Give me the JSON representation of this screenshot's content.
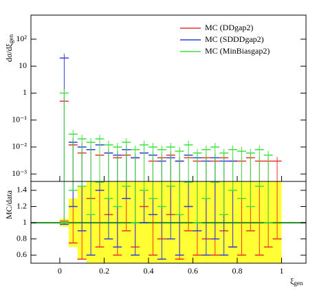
{
  "chart_data": {
    "type": "histogram-ratio",
    "ylabel": "dσ/dξ",
    "ylabel_sub": "gen",
    "xlabel": "ξ",
    "xlabel_sub": "gen",
    "log_y": true,
    "legend": "top-right",
    "bin_width": 0.04,
    "x": [
      0.02,
      0.06,
      0.1,
      0.14,
      0.18,
      0.22,
      0.26,
      0.3,
      0.34,
      0.38,
      0.42,
      0.46,
      0.5,
      0.54,
      0.58,
      0.62,
      0.66,
      0.7,
      0.74,
      0.78,
      0.82,
      0.86,
      0.9,
      0.94,
      0.98
    ],
    "xlim": [
      -0.13,
      1.11
    ],
    "xticks": [
      0,
      0.2,
      0.4,
      0.6,
      0.8,
      1
    ],
    "ylim": [
      0.00053,
      780
    ],
    "yticks": [
      {
        "value": 0.001,
        "label": "10⁻³"
      },
      {
        "value": 0.01,
        "label": "10⁻²"
      },
      {
        "value": 0.1,
        "label": "10⁻¹"
      },
      1,
      10,
      {
        "value": 100,
        "label": "10²"
      }
    ],
    "series": [
      {
        "name": "MC (DDgap2)",
        "color": "#e8322c",
        "values": [
          0.5,
          0.012,
          0.006,
          0.008,
          0.005,
          0.006,
          0.004,
          0.005,
          0.004,
          0.006,
          0.003,
          0.004,
          0.005,
          0.003,
          0.004,
          0.003,
          0.004,
          0.003,
          0.004,
          0.003,
          0.003,
          0.004,
          0.003,
          0.003,
          0.003
        ]
      },
      {
        "name": "MC (SDDDgap2)",
        "color": "#2f3de0",
        "values": [
          20,
          0.015,
          0.01,
          0.008,
          0.012,
          0.006,
          0.005,
          0.008,
          0.004,
          0.006,
          0.005,
          0.003,
          0.004,
          0.003,
          0.005,
          0.004,
          0.003,
          0.004,
          0.003,
          0.003,
          null,
          null,
          null,
          null,
          null
        ]
      },
      {
        "name": "MC (MinBiasgap2)",
        "color": "#3de03d",
        "values": [
          1,
          0.03,
          0.02,
          0.015,
          0.02,
          0.012,
          0.01,
          0.015,
          0.008,
          0.012,
          0.01,
          0.008,
          0.01,
          0.007,
          0.012,
          0.006,
          0.008,
          0.01,
          0.006,
          0.008,
          0.007,
          0.006,
          0.008,
          0.005,
          null
        ]
      }
    ],
    "ratio": {
      "ylabel": "MC/data",
      "ylim": [
        0.5,
        1.51
      ],
      "yticks": [
        0.6,
        0.8,
        1,
        1.2,
        1.4
      ],
      "reference": 1,
      "band_color": "#ffff33",
      "band": [
        0.05,
        0.3,
        0.45,
        0.6,
        0.6,
        0.7,
        0.8,
        0.7,
        0.9,
        0.8,
        0.9,
        1,
        0.9,
        1,
        0.9,
        1,
        1,
        0.9,
        1,
        1,
        1,
        1,
        1,
        1,
        0.6
      ],
      "series": [
        {
          "values": [
            1.02,
            0.75,
            0.55,
            1.3,
            0.7,
            1.1,
            0.6,
            0.9,
            0.7,
            1.2,
            0.6,
            0.8,
            1.1,
            0.55,
            0.9,
            0.6,
            0.8,
            0.6,
            0.9,
            0.7,
            0.6,
            0.9,
            0.6,
            0.7,
            0.8
          ]
        },
        {
          "values": [
            0.98,
            1.2,
            0.9,
            0.6,
            1.4,
            0.8,
            0.7,
            1.3,
            0.6,
            1.0,
            1.1,
            0.55,
            0.8,
            0.6,
            1.2,
            0.9,
            0.6,
            0.8,
            0.6,
            0.7,
            null,
            null,
            null,
            null,
            null
          ]
        },
        {
          "values": [
            1.0,
            1.4,
            1.45,
            1.1,
            1.5,
            1.3,
            1.2,
            1.45,
            1.0,
            1.4,
            1.3,
            1.2,
            1.45,
            1.1,
            1.5,
            1.0,
            1.3,
            1.5,
            1.1,
            1.4,
            1.3,
            1.2,
            1.45,
            1.0,
            null
          ]
        }
      ]
    }
  }
}
